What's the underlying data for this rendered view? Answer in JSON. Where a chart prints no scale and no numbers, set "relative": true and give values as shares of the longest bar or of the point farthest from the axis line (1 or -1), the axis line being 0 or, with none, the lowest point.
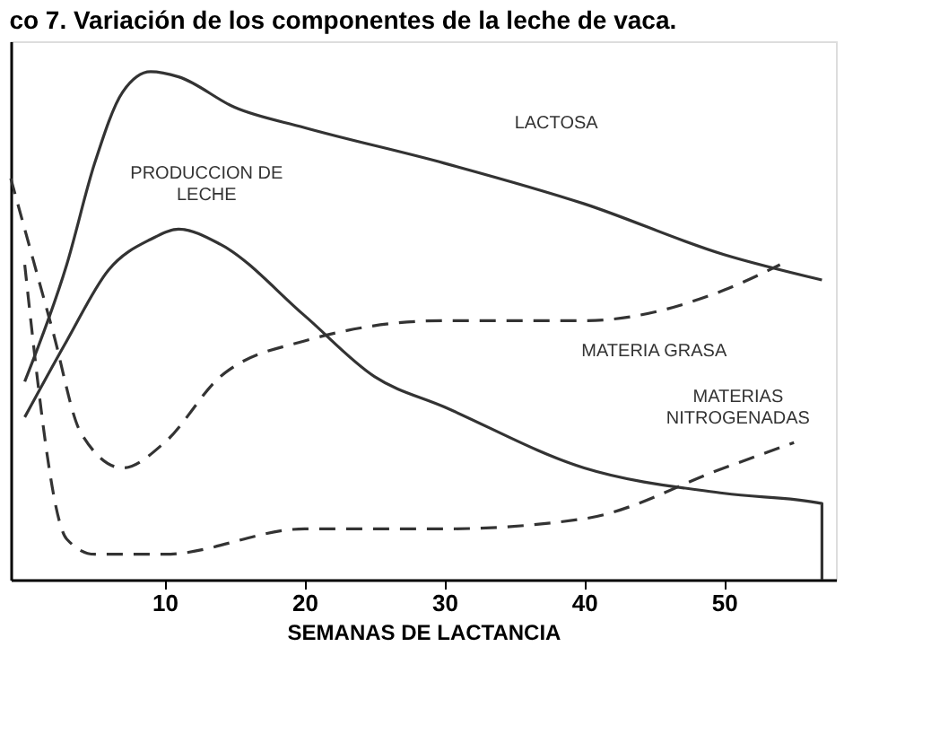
{
  "chart_data": {
    "type": "line",
    "title": "co 7. Variación de los componentes de la leche de vaca.",
    "xlabel": "SEMANAS DE LACTANCIA",
    "relative": true,
    "xlim": [
      -1,
      58
    ],
    "xticks": [
      10,
      20,
      30,
      40,
      50
    ],
    "grid": false,
    "tick_labels": "x",
    "marker": "none",
    "series": [
      {
        "name": "LACTOSA",
        "color": "#333333",
        "line_style": "solid",
        "x": [
          0,
          3,
          5,
          7,
          9,
          11,
          15,
          20,
          30,
          40,
          50,
          57
        ],
        "values": [
          0.39,
          0.62,
          0.82,
          0.96,
          1.0,
          0.99,
          0.93,
          0.89,
          0.82,
          0.74,
          0.64,
          0.59
        ]
      },
      {
        "name": "PRODUCCION DE LECHE",
        "color": "#333333",
        "line_style": "solid",
        "x": [
          0,
          3,
          6,
          9,
          11,
          14,
          20,
          25,
          30,
          40,
          50,
          57,
          57
        ],
        "values": [
          0.32,
          0.47,
          0.61,
          0.67,
          0.69,
          0.66,
          0.52,
          0.4,
          0.34,
          0.22,
          0.17,
          0.15,
          0.0
        ]
      },
      {
        "name": "MATERIA GRASA",
        "color": "#333333",
        "line_style": "dashed",
        "x": [
          -1,
          2,
          4,
          7,
          10,
          14,
          20,
          30,
          40,
          50,
          54
        ],
        "values": [
          0.79,
          0.49,
          0.29,
          0.22,
          0.27,
          0.4,
          0.47,
          0.51,
          0.51,
          0.57,
          0.62
        ]
      },
      {
        "name": "MATERIAS NITROGENADAS",
        "color": "#333333",
        "line_style": "dashed",
        "x": [
          0,
          3,
          5,
          10,
          20,
          30,
          40,
          50,
          55
        ],
        "values": [
          0.62,
          0.08,
          0.05,
          0.05,
          0.1,
          0.1,
          0.12,
          0.22,
          0.27
        ]
      }
    ]
  }
}
